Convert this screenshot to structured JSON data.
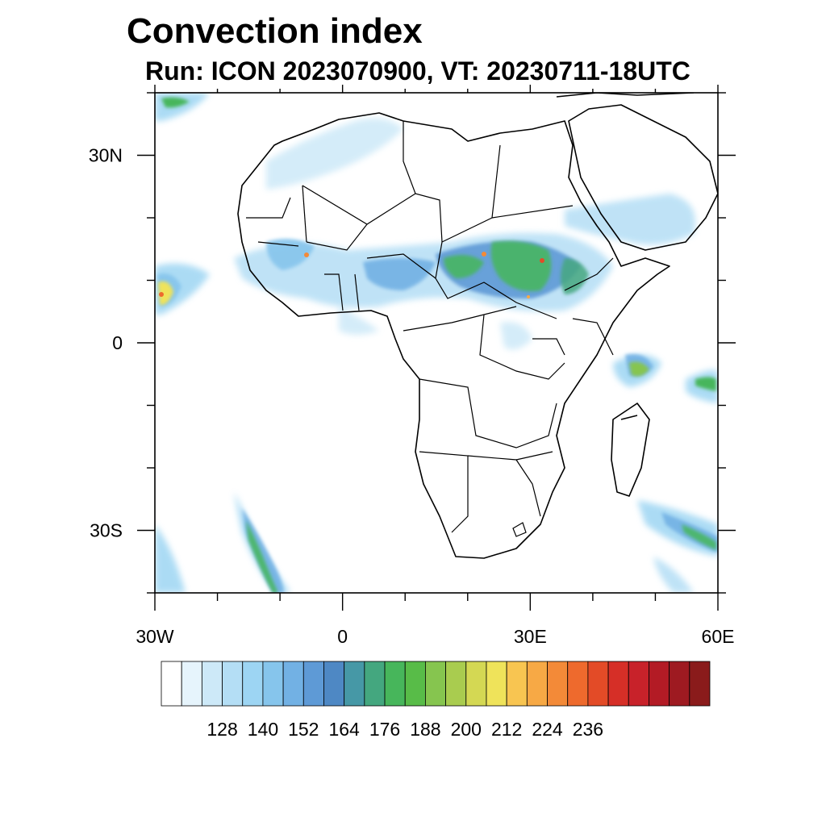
{
  "title": "Convection index",
  "subtitle": "Run: ICON 2023070900,  VT: 20230711-18UTC",
  "map": {
    "lon_range": [
      -30,
      60
    ],
    "lat_range": [
      -40,
      40
    ],
    "lon_labels": [
      {
        "lon": -30,
        "text": "30W"
      },
      {
        "lon": 0,
        "text": "0"
      },
      {
        "lon": 30,
        "text": "30E"
      },
      {
        "lon": 60,
        "text": "60E"
      }
    ],
    "lat_labels": [
      {
        "lat": 30,
        "text": "30N"
      },
      {
        "lat": 0,
        "text": "0"
      },
      {
        "lat": -30,
        "text": "30S"
      }
    ]
  },
  "colorbar": {
    "colors": [
      "#ffffff",
      "#e6f4fc",
      "#cde9f8",
      "#b4def5",
      "#9dd5f3",
      "#86c5ec",
      "#72b1e4",
      "#5e9ad6",
      "#4e88c4",
      "#4698a6",
      "#44a77f",
      "#47b65b",
      "#58bc48",
      "#86c54f",
      "#a9cc4f",
      "#d4d853",
      "#efe35a",
      "#f8c551",
      "#f7a945",
      "#f38a38",
      "#ee6a2d",
      "#e34b27",
      "#d62f27",
      "#c8222a",
      "#b31b25",
      "#9e1a21",
      "#8a1b1b"
    ],
    "labels": [
      "128",
      "140",
      "152",
      "164",
      "176",
      "188",
      "200",
      "212",
      "224",
      "236"
    ]
  }
}
